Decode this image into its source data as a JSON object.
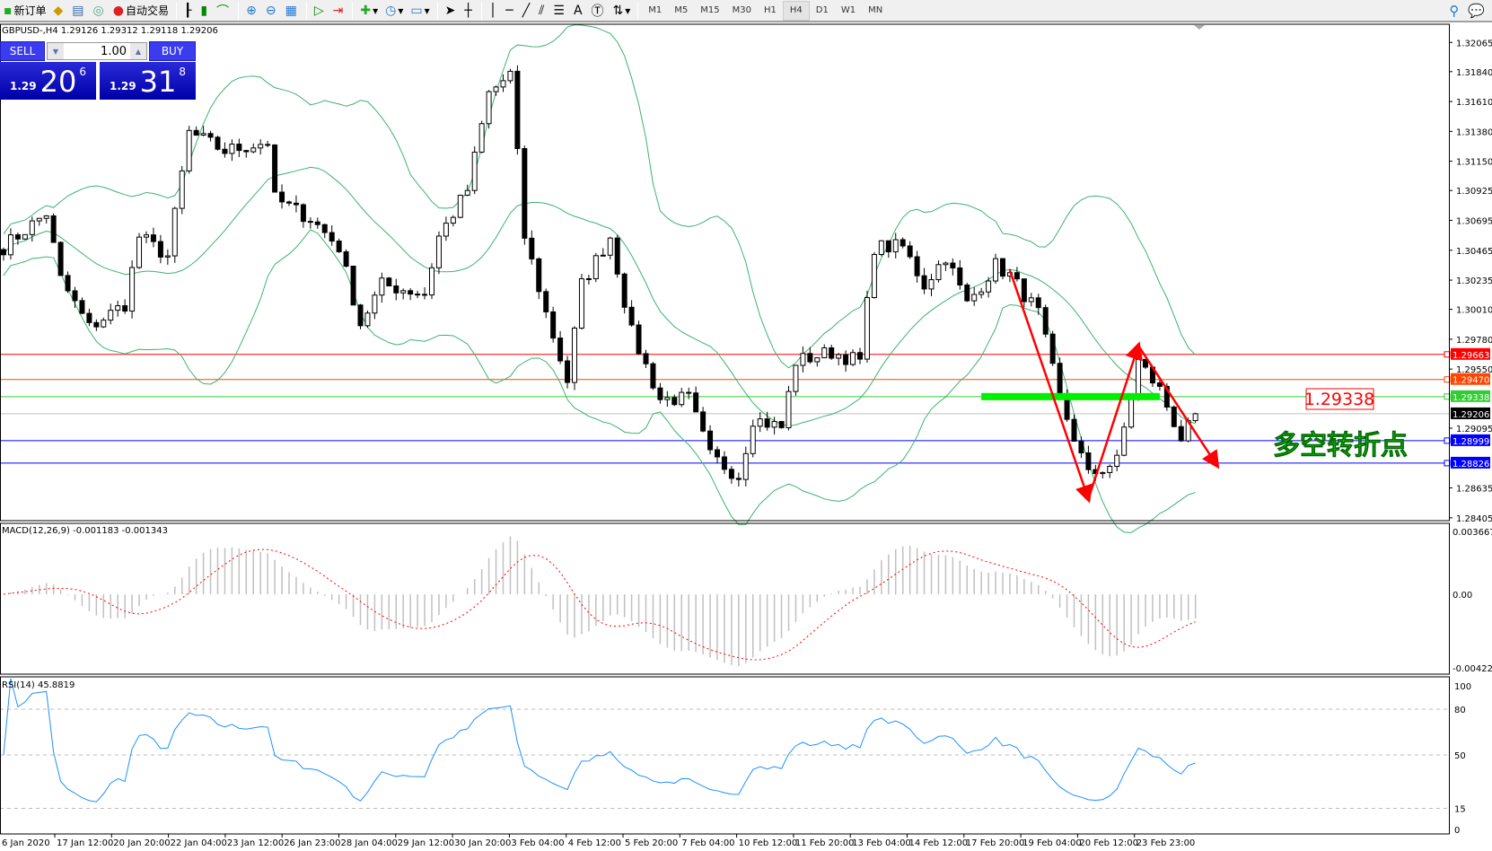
{
  "toolbar": {
    "new_order": "新订单",
    "auto_trading": "自动交易",
    "icons": [
      "new-order-icon",
      "market-watch-icon",
      "data-window-icon",
      "navigator-icon",
      "auto-trading-icon",
      "bar-chart-icon",
      "candlestick-icon",
      "line-chart-icon",
      "zoom-in-icon",
      "zoom-out-icon",
      "tile-windows-icon",
      "chart-shift-icon",
      "autoscroll-icon",
      "indicators-icon",
      "periods-icon",
      "templates-icon",
      "cursor-icon",
      "crosshair-icon",
      "vertical-line-icon",
      "horizontal-line-icon",
      "trendline-icon",
      "fibonacci-fan-icon",
      "fibonacci-retracement-icon",
      "text-icon",
      "text-label-icon",
      "arrows-icon",
      "search-icon",
      "chat-icon"
    ],
    "timeframes": [
      "M1",
      "M5",
      "M15",
      "M30",
      "H1",
      "H4",
      "D1",
      "W1",
      "MN"
    ],
    "active_timeframe": "H4"
  },
  "chart": {
    "header": "GBPUSD-,H4  1.29126 1.29312 1.29118 1.29206",
    "trade_panel": {
      "sell_label": "SELL",
      "buy_label": "BUY",
      "lot": "1.00",
      "sell_prefix": "1.29",
      "sell_big": "20",
      "sell_sup": "6",
      "buy_prefix": "1.29",
      "buy_big": "31",
      "buy_sup": "8"
    },
    "annotation_price": "1.29338",
    "annotation_text": "多空转折点",
    "macd_label": "MACD(12,26,9) -0.001183 -0.001343",
    "rsi_label": "RSI(14) 45.8819",
    "colors": {
      "bull_bear_candle": "#000000",
      "bollinger": "#3cb371",
      "macd_hist": "#c0c0c0",
      "macd_signal": "#ff0000",
      "rsi": "#1e90ff",
      "annotation_arrow": "#ff0000",
      "annotation_zone": "#00ee00"
    }
  },
  "chart_data": {
    "type": "candlestick",
    "symbol": "GBPUSD-",
    "timeframe": "H4",
    "price_range": [
      1.28383,
      1.32205
    ],
    "price_ticks": [
      "1.32065",
      "1.31840",
      "1.31610",
      "1.31380",
      "1.31150",
      "1.30925",
      "1.30695",
      "1.30465",
      "1.30235",
      "1.30010",
      "1.29780",
      "1.29550",
      "1.29095",
      "1.28635",
      "1.28405"
    ],
    "close_keypoints": [
      [
        0,
        1.3049
      ],
      [
        6,
        1.3075
      ],
      [
        8,
        1.3024
      ],
      [
        12,
        1.2987
      ],
      [
        17,
        1.3005
      ],
      [
        19,
        1.3057
      ],
      [
        23,
        1.3042
      ],
      [
        26,
        1.3137
      ],
      [
        31,
        1.3123
      ],
      [
        37,
        1.313
      ],
      [
        38,
        1.3086
      ],
      [
        43,
        1.3071
      ],
      [
        47,
        1.3049
      ],
      [
        50,
        1.299
      ],
      [
        53,
        1.302
      ],
      [
        59,
        1.3013
      ],
      [
        61,
        1.3057
      ],
      [
        65,
        1.3093
      ],
      [
        68,
        1.3167
      ],
      [
        71,
        1.3182
      ],
      [
        73,
        1.3057
      ],
      [
        76,
        1.2998
      ],
      [
        79,
        1.2946
      ],
      [
        81,
        1.302
      ],
      [
        85,
        1.3057
      ],
      [
        88,
        1.2983
      ],
      [
        92,
        1.2932
      ],
      [
        96,
        1.2932
      ],
      [
        99,
        1.2888
      ],
      [
        103,
        1.2873
      ],
      [
        105,
        1.2917
      ],
      [
        109,
        1.291
      ],
      [
        111,
        1.2961
      ],
      [
        116,
        1.2968
      ],
      [
        120,
        1.2961
      ],
      [
        122,
        1.3049
      ],
      [
        126,
        1.3049
      ],
      [
        129,
        1.302
      ],
      [
        132,
        1.3042
      ],
      [
        135,
        1.3005
      ],
      [
        139,
        1.3035
      ],
      [
        141,
        1.3027
      ],
      [
        145,
        1.2998
      ],
      [
        148,
        1.2932
      ],
      [
        152,
        1.2873
      ],
      [
        156,
        1.2884
      ],
      [
        159,
        1.2961
      ],
      [
        162,
        1.2939
      ],
      [
        165,
        1.2902
      ],
      [
        167,
        1.2917
      ]
    ],
    "price_lines": [
      {
        "price": "1.29663",
        "color": "#ff0000"
      },
      {
        "price": "1.29470",
        "color": "#ff4500"
      },
      {
        "price": "1.29338",
        "color": "#32cd32"
      },
      {
        "price": "1.29206",
        "color": "#c0c0c0",
        "bid": true
      },
      {
        "price": "1.28999",
        "color": "#0000ff"
      },
      {
        "price": "1.28826",
        "color": "#0000ff"
      }
    ],
    "zigzag": [
      [
        141,
        1.3031
      ],
      [
        152,
        1.2855
      ],
      [
        159,
        1.2973
      ],
      [
        170,
        1.2881
      ]
    ],
    "macd_range": [
      -0.00422,
      0.003667
    ],
    "macd_ticks": [
      "0.003667",
      "0.00",
      "-0.00422"
    ],
    "rsi_ticks": [
      "100",
      "80",
      "50",
      "15",
      "0"
    ],
    "time_labels": [
      "6 Jan 2020",
      "17 Jan 12:00",
      "20 Jan 20:00",
      "22 Jan 04:00",
      "23 Jan 12:00",
      "26 Jan 23:00",
      "28 Jan 04:00",
      "29 Jan 12:00",
      "30 Jan 20:00",
      "3 Feb 04:00",
      "4 Feb 12:00",
      "5 Feb 20:00",
      "7 Feb 04:00",
      "10 Feb 12:00",
      "11 Feb 20:00",
      "13 Feb 04:00",
      "14 Feb 12:00",
      "17 Feb 20:00",
      "19 Feb 04:00",
      "20 Feb 12:00",
      "23 Feb 23:00"
    ]
  }
}
